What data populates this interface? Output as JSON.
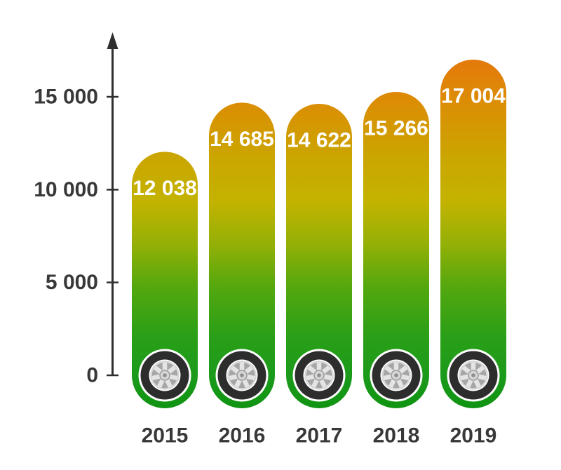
{
  "chart_data": {
    "type": "bar",
    "title": "",
    "xlabel": "",
    "ylabel": "",
    "categories": [
      "2015",
      "2016",
      "2017",
      "2018",
      "2019"
    ],
    "values": [
      12038,
      14685,
      14622,
      15266,
      17004
    ],
    "value_labels": [
      "12 038",
      "14 685",
      "14 622",
      "15 266",
      "17 004"
    ],
    "y_axis": {
      "ticks": [
        0,
        5000,
        10000,
        15000
      ],
      "tick_labels": [
        "0",
        "5 000",
        "10 000",
        "15 000"
      ],
      "range": [
        0,
        18500
      ],
      "arrow": true
    },
    "grid": false,
    "legend": false,
    "bar_icon": "car-wheel-icon",
    "bar_style": "capsule-rounded-top-and-bottom",
    "colors": {
      "background": "#FFFFFF",
      "axis": "#2E2E2E",
      "tick_label": "#383838",
      "category_label": "#383838",
      "value_label": "#FFFFFF",
      "bar_gradient_stops": [
        {
          "offset": "0%",
          "color": "#E4780B"
        },
        {
          "offset": "13%",
          "color": "#DB8E04"
        },
        {
          "offset": "28%",
          "color": "#CBA500"
        },
        {
          "offset": "41%",
          "color": "#C3B300"
        },
        {
          "offset": "53%",
          "color": "#94B006"
        },
        {
          "offset": "65%",
          "color": "#55A80E"
        },
        {
          "offset": "79%",
          "color": "#2B9F17"
        },
        {
          "offset": "91%",
          "color": "#1B9A1B"
        },
        {
          "offset": "100%",
          "color": "#109412"
        }
      ],
      "wheel": {
        "outer_ring": "#FFFFFF",
        "tire": "#2D2D2D",
        "inner_ring": "#FFFFFF",
        "rim_base": "#A6A6A6",
        "spoke": "#E4E4E4",
        "rim_edge": "#D8D8D8",
        "hub": "#D6D6D6",
        "hub_stroke": "#9B9B9B",
        "hub_hole": "#8F8F8F"
      }
    }
  }
}
